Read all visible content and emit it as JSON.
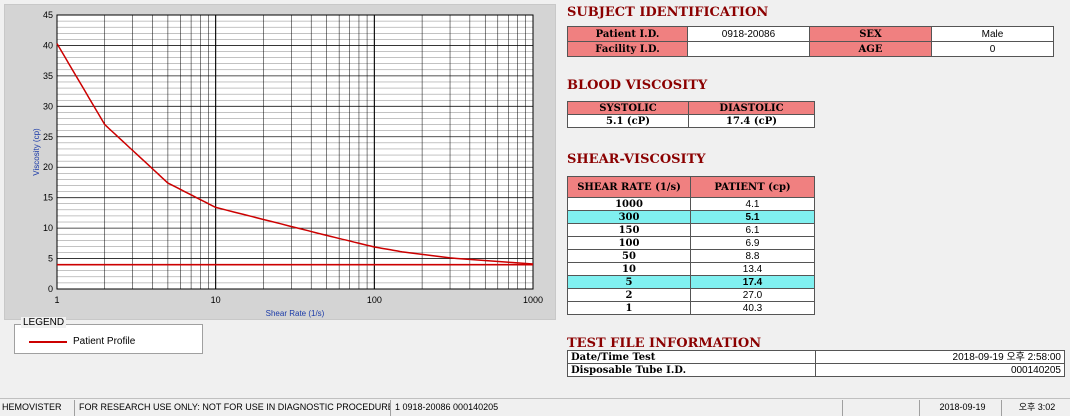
{
  "chart_data": {
    "type": "line",
    "xlabel": "Shear Rate (1/s)",
    "ylabel": "Viscosity (cp)",
    "xscale": "log",
    "xlim": [
      1,
      1000
    ],
    "ylim": [
      0,
      45
    ],
    "x_ticks": [
      "1",
      "10",
      "100",
      "1000"
    ],
    "y_ticks": [
      "0",
      "5",
      "10",
      "15",
      "20",
      "25",
      "30",
      "35",
      "40",
      "45"
    ],
    "grid": true,
    "series": [
      {
        "name": "Patient Profile",
        "color": "#cc0000",
        "x": [
          1,
          2,
          5,
          10,
          50,
          100,
          150,
          300,
          1000
        ],
        "y": [
          40.3,
          27.0,
          17.4,
          13.4,
          8.8,
          6.9,
          6.1,
          5.1,
          4.1
        ]
      }
    ],
    "reference_line": {
      "y": 4.0,
      "color": "#cc0000"
    }
  },
  "legend": {
    "title": "LEGEND",
    "entry": "Patient Profile"
  },
  "subject": {
    "title": "SUBJECT IDENTIFICATION",
    "patient_id_label": "Patient I.D.",
    "patient_id": "0918-20086",
    "sex_label": "SEX",
    "sex": "Male",
    "facility_id_label": "Facility I.D.",
    "facility_id": "",
    "age_label": "AGE",
    "age": "0"
  },
  "blood": {
    "title": "BLOOD VISCOSITY",
    "systolic_label": "SYSTOLIC",
    "diastolic_label": "DIASTOLIC",
    "systolic": "5.1 (cP)",
    "diastolic": "17.4 (cP)"
  },
  "shear": {
    "title": "SHEAR-VISCOSITY",
    "col1": "SHEAR RATE (1/s)",
    "col2": "PATIENT (cp)",
    "rows": [
      {
        "rate": "1000",
        "value": "4.1",
        "highlight": false
      },
      {
        "rate": "300",
        "value": "5.1",
        "highlight": true
      },
      {
        "rate": "150",
        "value": "6.1",
        "highlight": false
      },
      {
        "rate": "100",
        "value": "6.9",
        "highlight": false
      },
      {
        "rate": "50",
        "value": "8.8",
        "highlight": false
      },
      {
        "rate": "10",
        "value": "13.4",
        "highlight": false
      },
      {
        "rate": "5",
        "value": "17.4",
        "highlight": true
      },
      {
        "rate": "2",
        "value": "27.0",
        "highlight": false
      },
      {
        "rate": "1",
        "value": "40.3",
        "highlight": false
      }
    ],
    "highlight_color": "#80f0f0"
  },
  "testfile": {
    "title": "TEST FILE INFORMATION",
    "datetime_label": "Date/Time Test",
    "datetime": "2018-09-19  오후 2:58:00",
    "tube_label": "Disposable Tube I.D.",
    "tube": "000140205"
  },
  "status": {
    "app": "HEMOVISTER",
    "notice": "FOR RESEARCH USE ONLY: NOT FOR USE IN DIAGNOSTIC PROCEDURES",
    "ids": "1  0918-20086  000140205",
    "date": "2018-09-19",
    "time": "오후 3:02"
  }
}
